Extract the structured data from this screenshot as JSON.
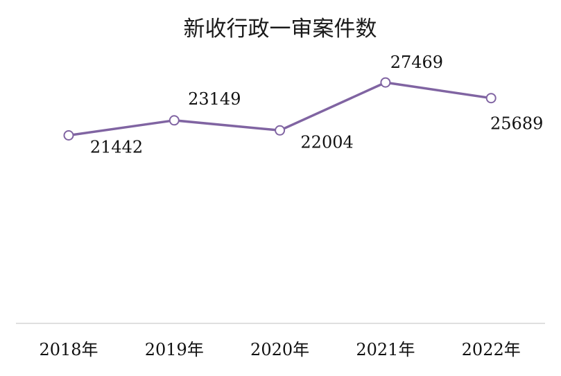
{
  "chart_data": {
    "type": "line",
    "title": "新收行政一审案件数",
    "xlabel": "",
    "ylabel": "",
    "categories": [
      "2018年",
      "2019年",
      "2020年",
      "2021年",
      "2022年"
    ],
    "series": [
      {
        "values": [
          21442,
          23149,
          22004,
          27469,
          25689
        ],
        "color": "#8064a2"
      }
    ],
    "ylim": [
      0,
      30000
    ],
    "data_labels": true,
    "grid": false,
    "legend": "none",
    "axis_color": "#bfbfbf",
    "marker": "circle-hollow"
  }
}
